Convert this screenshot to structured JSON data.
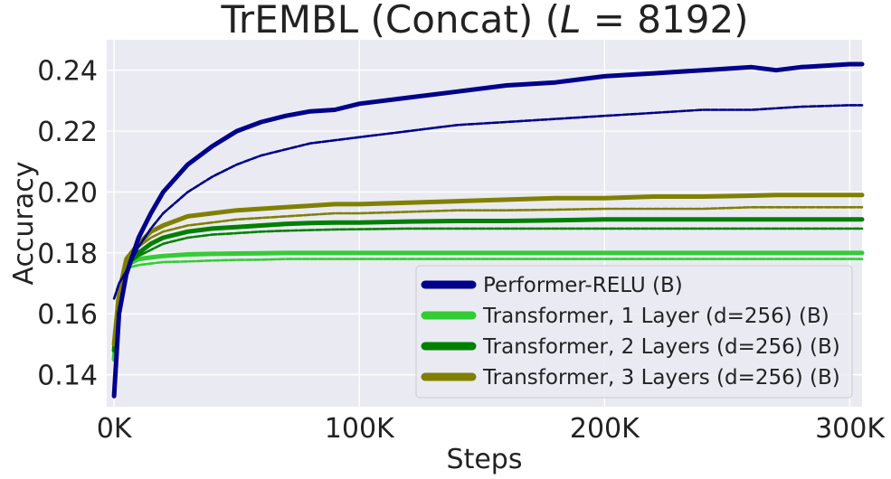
{
  "chart_data": {
    "type": "line",
    "title": "TrEMBL (Concat) (L = 8192)",
    "title_parts": {
      "prefix": "TrEMBL (Concat) (",
      "var": "L",
      "rest": " = 8192)"
    },
    "xlabel": "Steps",
    "ylabel": "Accuracy",
    "xlim": [
      -3000,
      305000
    ],
    "ylim": [
      0.1295,
      0.25
    ],
    "x_ticks": [
      {
        "value": 0,
        "label": "0K"
      },
      {
        "value": 100000,
        "label": "100K"
      },
      {
        "value": 200000,
        "label": "200K"
      },
      {
        "value": 300000,
        "label": "300K"
      }
    ],
    "y_ticks": [
      {
        "value": 0.14,
        "label": "0.14"
      },
      {
        "value": 0.16,
        "label": "0.16"
      },
      {
        "value": 0.18,
        "label": "0.18"
      },
      {
        "value": 0.2,
        "label": "0.20"
      },
      {
        "value": 0.22,
        "label": "0.22"
      },
      {
        "value": 0.24,
        "label": "0.24"
      }
    ],
    "grid": true,
    "legend_position": "lower-right",
    "x": [
      0,
      2000,
      5000,
      10000,
      15000,
      20000,
      30000,
      40000,
      50000,
      60000,
      70000,
      80000,
      90000,
      100000,
      120000,
      140000,
      160000,
      180000,
      200000,
      220000,
      240000,
      260000,
      270000,
      280000,
      300000,
      305000
    ],
    "series": [
      {
        "name": "Performer-RELU (B)",
        "color": "#00008b",
        "style": "solid",
        "in_legend": true,
        "values": [
          0.133,
          0.16,
          0.173,
          0.185,
          0.193,
          0.2,
          0.209,
          0.215,
          0.22,
          0.223,
          0.225,
          0.2265,
          0.227,
          0.229,
          0.231,
          0.233,
          0.235,
          0.236,
          0.238,
          0.239,
          0.24,
          0.241,
          0.24,
          0.241,
          0.242,
          0.242
        ]
      },
      {
        "name": "Performer-RELU (B) eval",
        "color": "#00008b",
        "style": "dashed",
        "in_legend": false,
        "values": [
          0.165,
          0.17,
          0.174,
          0.182,
          0.188,
          0.193,
          0.2,
          0.205,
          0.209,
          0.212,
          0.214,
          0.216,
          0.217,
          0.218,
          0.22,
          0.222,
          0.223,
          0.224,
          0.225,
          0.226,
          0.227,
          0.227,
          0.2275,
          0.228,
          0.2285,
          0.2285
        ]
      },
      {
        "name": "Transformer, 1 Layer (d=256) (B)",
        "color": "#32cd32",
        "style": "solid",
        "in_legend": true,
        "values": [
          0.145,
          0.165,
          0.176,
          0.178,
          0.1785,
          0.179,
          0.1795,
          0.1797,
          0.1798,
          0.1799,
          0.18,
          0.18,
          0.18,
          0.18,
          0.18,
          0.18,
          0.18,
          0.18,
          0.18,
          0.18,
          0.18,
          0.18,
          0.18,
          0.18,
          0.18,
          0.18
        ]
      },
      {
        "name": "Transformer, 1 Layer (d=256) (B) eval",
        "color": "#32cd32",
        "style": "dashed",
        "in_legend": false,
        "values": [
          0.148,
          0.166,
          0.175,
          0.176,
          0.1765,
          0.177,
          0.1772,
          0.1775,
          0.1777,
          0.1778,
          0.178,
          0.178,
          0.178,
          0.178,
          0.178,
          0.178,
          0.178,
          0.178,
          0.178,
          0.178,
          0.178,
          0.178,
          0.178,
          0.178,
          0.178,
          0.178
        ]
      },
      {
        "name": "Transformer, 2 Layers (d=256) (B)",
        "color": "#008000",
        "style": "solid",
        "in_legend": true,
        "values": [
          0.148,
          0.165,
          0.177,
          0.18,
          0.183,
          0.185,
          0.187,
          0.188,
          0.1885,
          0.189,
          0.1895,
          0.1898,
          0.19,
          0.19,
          0.1903,
          0.1905,
          0.1905,
          0.1907,
          0.191,
          0.191,
          0.191,
          0.191,
          0.191,
          0.191,
          0.191,
          0.191
        ]
      },
      {
        "name": "Transformer, 2 Layers (d=256) (B) eval",
        "color": "#008000",
        "style": "dashed",
        "in_legend": false,
        "values": [
          0.15,
          0.166,
          0.176,
          0.179,
          0.181,
          0.183,
          0.185,
          0.186,
          0.1865,
          0.187,
          0.1873,
          0.1875,
          0.1877,
          0.1878,
          0.188,
          0.188,
          0.188,
          0.188,
          0.188,
          0.188,
          0.188,
          0.188,
          0.188,
          0.188,
          0.188,
          0.188
        ]
      },
      {
        "name": "Transformer, 3 Layers (d=256) (B)",
        "color": "#808000",
        "style": "solid",
        "in_legend": true,
        "values": [
          0.15,
          0.167,
          0.178,
          0.183,
          0.187,
          0.189,
          0.192,
          0.193,
          0.194,
          0.1945,
          0.195,
          0.1955,
          0.196,
          0.196,
          0.1965,
          0.197,
          0.1975,
          0.198,
          0.198,
          0.1985,
          0.1985,
          0.1988,
          0.199,
          0.199,
          0.199,
          0.199
        ]
      },
      {
        "name": "Transformer, 3 Layers (d=256) (B) eval",
        "color": "#808000",
        "style": "dashed",
        "in_legend": false,
        "values": [
          0.152,
          0.168,
          0.178,
          0.182,
          0.185,
          0.187,
          0.189,
          0.19,
          0.191,
          0.1915,
          0.192,
          0.1925,
          0.193,
          0.193,
          0.1935,
          0.194,
          0.194,
          0.1942,
          0.1945,
          0.1945,
          0.1945,
          0.195,
          0.195,
          0.195,
          0.195,
          0.195
        ]
      }
    ]
  }
}
